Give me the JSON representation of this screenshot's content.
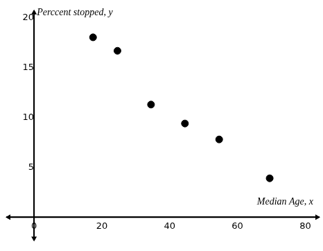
{
  "chart_data": {
    "type": "scatter",
    "x_label": "Median Age, x",
    "y_label": "Perccent stopped, y",
    "x": [
      17.4,
      24.6,
      34.5,
      44.5,
      54.6,
      69.5
    ],
    "values": [
      18.05,
      16.7,
      11.3,
      9.4,
      7.8,
      3.9
    ],
    "color": "#000000",
    "marker": "circle",
    "xlim": [
      -8,
      84
    ],
    "ylim": [
      -2.3,
      20.7
    ],
    "xticks": [
      0,
      20,
      40,
      60,
      80
    ],
    "yticks": [
      5,
      10,
      15,
      20
    ],
    "grid": false
  }
}
